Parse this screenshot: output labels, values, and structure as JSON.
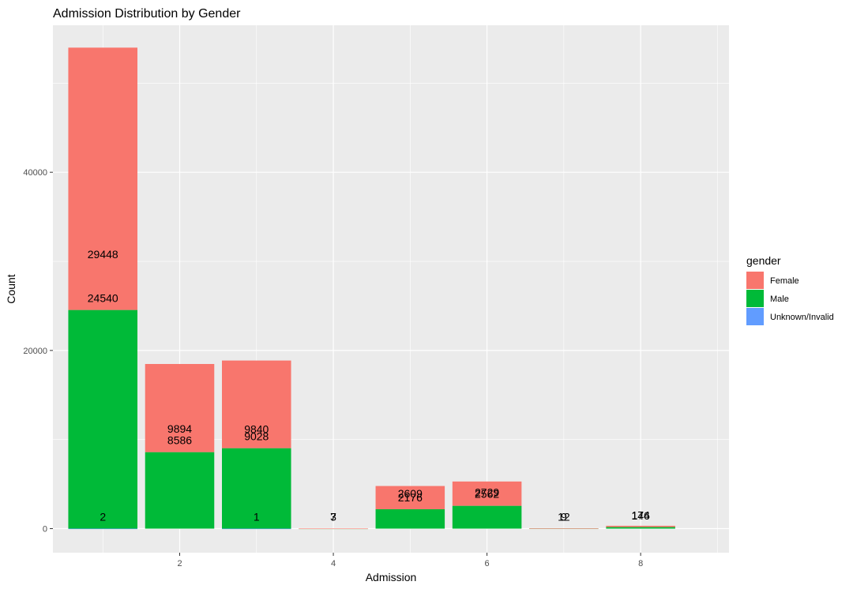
{
  "chart_data": {
    "type": "bar",
    "stacked": true,
    "title": "Admission Distribution by Gender",
    "xlabel": "Admission",
    "ylabel": "Count",
    "xlim": [
      0.35,
      9.15
    ],
    "ylim": [
      -2700,
      56500
    ],
    "x_ticks": [
      2,
      4,
      6,
      8
    ],
    "y_ticks": [
      0,
      20000,
      40000
    ],
    "grid": true,
    "legend": {
      "title": "gender",
      "position": "right",
      "items": [
        {
          "name": "Female",
          "color": "#F8766D"
        },
        {
          "name": "Male",
          "color": "#00BA38"
        },
        {
          "name": "Unknown/Invalid",
          "color": "#619CFF"
        }
      ]
    },
    "categories": [
      1,
      2,
      3,
      4,
      5,
      6,
      7,
      8
    ],
    "series": [
      {
        "name": "Female",
        "color": "#F8766D",
        "values": [
          29448,
          9894,
          9840,
          7,
          2609,
          2729,
          12,
          146
        ]
      },
      {
        "name": "Male",
        "color": "#00BA38",
        "values": [
          24540,
          8586,
          9028,
          3,
          2176,
          2562,
          9,
          174
        ]
      },
      {
        "name": "Unknown/Invalid",
        "color": "#619CFF",
        "values": [
          2,
          0,
          1,
          0,
          0,
          0,
          0,
          0
        ]
      }
    ]
  }
}
